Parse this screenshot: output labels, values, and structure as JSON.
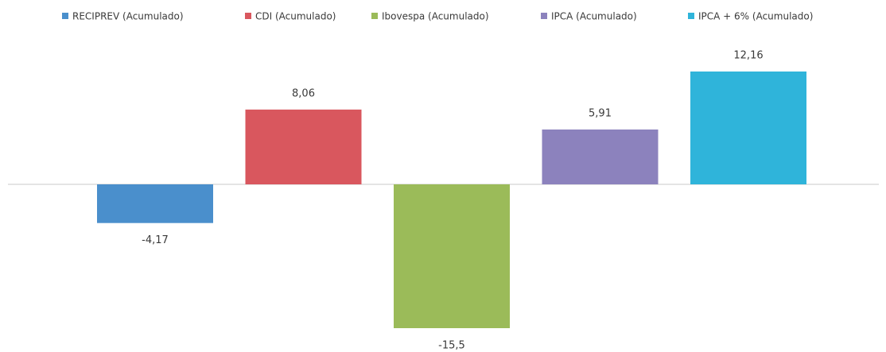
{
  "chart_data": {
    "type": "bar",
    "categories": [
      null
    ],
    "series": [
      {
        "name": "RECIPREV (Acumulado)",
        "color": "#4a8fcc",
        "values": [
          -4.17
        ],
        "value_labels": [
          "-4,17"
        ]
      },
      {
        "name": "CDI (Acumulado)",
        "color": "#d9575e",
        "values": [
          8.06
        ],
        "value_labels": [
          "8,06"
        ]
      },
      {
        "name": "Ibovespa (Acumulado)",
        "color": "#9bbb59",
        "values": [
          -15.5
        ],
        "value_labels": [
          "-15,5"
        ]
      },
      {
        "name": "IPCA (Acumulado)",
        "color": "#8c82bd",
        "values": [
          5.91
        ],
        "value_labels": [
          "5,91"
        ]
      },
      {
        "name": "IPCA + 6% (Acumulado)",
        "color": "#2fb4da",
        "values": [
          12.16
        ],
        "value_labels": [
          "12,16"
        ]
      }
    ],
    "legend": "top"
  }
}
